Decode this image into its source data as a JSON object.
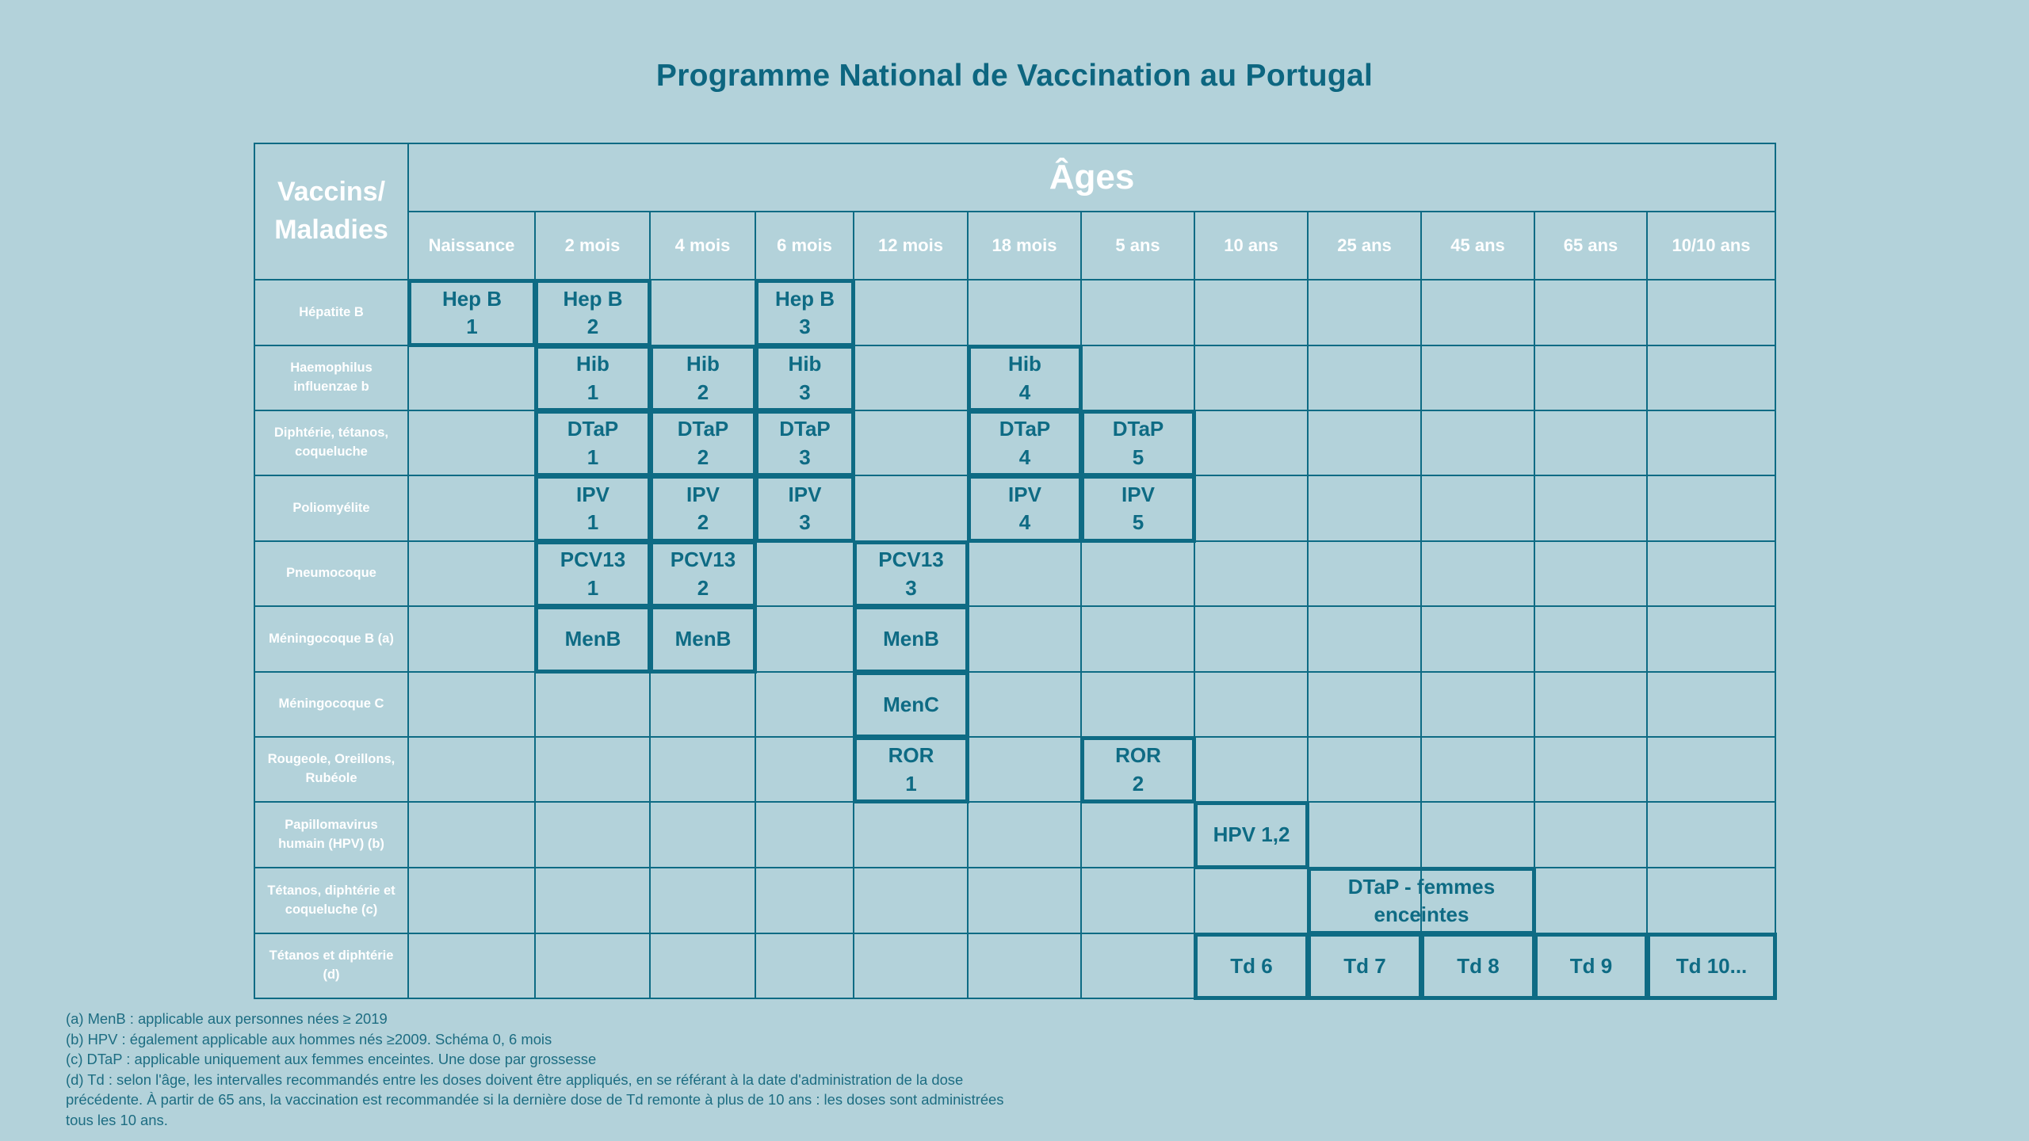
{
  "title": "Programme National de Vaccination au Portugal",
  "table": {
    "corner_label": "Vaccins/\nMaladies",
    "ages_header": "Âges",
    "ages": [
      "Naissance",
      "2 mois",
      "4 mois",
      "6 mois",
      "12 mois",
      "18 mois",
      "5 ans",
      "10 ans",
      "25 ans",
      "45 ans",
      "65 ans",
      "10/10 ans"
    ],
    "rows": [
      {
        "label": "Hépatite B",
        "doses": [
          {
            "col": 0,
            "span": 1,
            "text": "Hep B\n1"
          },
          {
            "col": 1,
            "span": 1,
            "text": "Hep B\n2"
          },
          {
            "col": 3,
            "span": 1,
            "text": "Hep B\n3"
          }
        ]
      },
      {
        "label": "Haemophilus influenzae b",
        "doses": [
          {
            "col": 1,
            "span": 1,
            "text": "Hib\n1"
          },
          {
            "col": 2,
            "span": 1,
            "text": "Hib\n2"
          },
          {
            "col": 3,
            "span": 1,
            "text": "Hib\n3"
          },
          {
            "col": 5,
            "span": 1,
            "text": "Hib\n4"
          }
        ]
      },
      {
        "label": "Diphtérie, tétanos, coqueluche",
        "doses": [
          {
            "col": 1,
            "span": 1,
            "text": "DTaP\n1"
          },
          {
            "col": 2,
            "span": 1,
            "text": "DTaP\n2"
          },
          {
            "col": 3,
            "span": 1,
            "text": "DTaP\n3"
          },
          {
            "col": 5,
            "span": 1,
            "text": "DTaP\n4"
          },
          {
            "col": 6,
            "span": 1,
            "text": "DTaP\n5"
          }
        ]
      },
      {
        "label": "Poliomyélite",
        "doses": [
          {
            "col": 1,
            "span": 1,
            "text": "IPV\n1"
          },
          {
            "col": 2,
            "span": 1,
            "text": "IPV\n2"
          },
          {
            "col": 3,
            "span": 1,
            "text": "IPV\n3"
          },
          {
            "col": 5,
            "span": 1,
            "text": "IPV\n4"
          },
          {
            "col": 6,
            "span": 1,
            "text": "IPV\n5"
          }
        ]
      },
      {
        "label": "Pneumocoque",
        "doses": [
          {
            "col": 1,
            "span": 1,
            "text": "PCV13\n1"
          },
          {
            "col": 2,
            "span": 1,
            "text": "PCV13\n2"
          },
          {
            "col": 4,
            "span": 1,
            "text": "PCV13\n3"
          }
        ]
      },
      {
        "label": "Méningocoque B (a)",
        "doses": [
          {
            "col": 1,
            "span": 1,
            "text": "MenB"
          },
          {
            "col": 2,
            "span": 1,
            "text": "MenB"
          },
          {
            "col": 4,
            "span": 1,
            "text": "MenB"
          }
        ]
      },
      {
        "label": "Méningocoque C",
        "doses": [
          {
            "col": 4,
            "span": 1,
            "text": "MenC"
          }
        ]
      },
      {
        "label": "Rougeole, Oreillons, Rubéole",
        "doses": [
          {
            "col": 4,
            "span": 1,
            "text": "ROR\n1"
          },
          {
            "col": 6,
            "span": 1,
            "text": "ROR\n2"
          }
        ]
      },
      {
        "label": "Papillomavirus humain (HPV) (b)",
        "doses": [
          {
            "col": 7,
            "span": 1,
            "text": "HPV 1,2"
          }
        ]
      },
      {
        "label": "Tétanos, diphtérie et coqueluche (c)",
        "doses": [
          {
            "col": 8,
            "span": 2,
            "text": "DTaP - femmes\nenceintes"
          }
        ]
      },
      {
        "label": "Tétanos et diphtérie (d)",
        "doses": [
          {
            "col": 7,
            "span": 1,
            "text": "Td 6"
          },
          {
            "col": 8,
            "span": 1,
            "text": "Td 7"
          },
          {
            "col": 9,
            "span": 1,
            "text": "Td 8"
          },
          {
            "col": 10,
            "span": 1,
            "text": "Td 9"
          },
          {
            "col": 11,
            "span": 1,
            "text": "Td 10..."
          }
        ]
      }
    ]
  },
  "notes": [
    "(a) MenB : applicable aux personnes nées ≥ 2019",
    "(b) HPV : également applicable aux hommes nés ≥2009. Schéma 0, 6 mois",
    "(c) DTaP : applicable uniquement aux femmes enceintes. Une dose par grossesse",
    "(d) Td : selon l'âge, les intervalles recommandés entre les doses doivent être appliqués, en se référant à la date d'administration de la dose",
    "précédente. À partir de 65 ans, la vaccination est recommandée si la dernière dose de Td remonte à plus de 10 ans : les doses sont administrées",
    "tous les 10 ans."
  ],
  "colors": {
    "background": "#b3d2da",
    "grid_line": "#0e6b84",
    "title_text": "#0d6680",
    "header_text": "#ffffff"
  }
}
